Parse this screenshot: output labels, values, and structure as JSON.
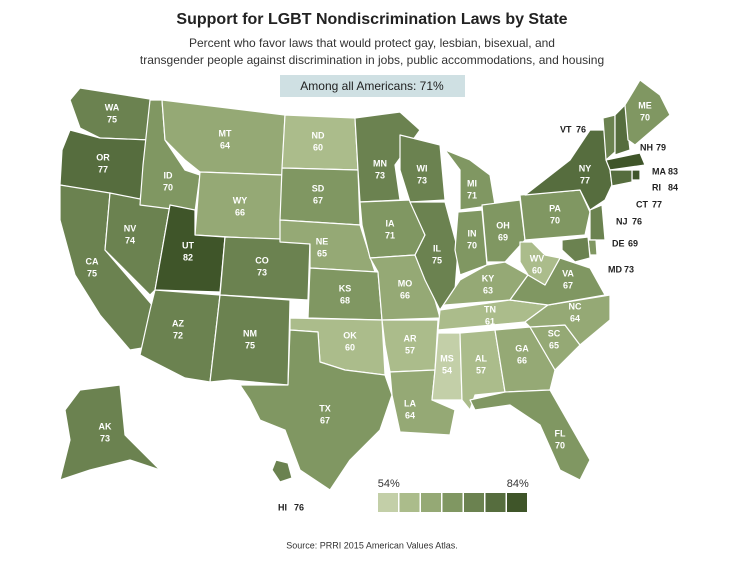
{
  "chart_data": {
    "type": "choropleth",
    "title": "Support for LGBT Nondiscrimination Laws by State",
    "subtitle": [
      "Percent who favor laws that would protect gay, lesbian, bisexual, and",
      "transgender people against discrimination in jobs, public accommodations, and housing"
    ],
    "annotation": "Among all Americans: 71%",
    "source": "Source: PRRI 2015 American Values Atlas.",
    "regions": [
      "WA",
      "OR",
      "CA",
      "NV",
      "ID",
      "MT",
      "WY",
      "UT",
      "CO",
      "AZ",
      "NM",
      "ND",
      "SD",
      "NE",
      "KS",
      "OK",
      "TX",
      "MN",
      "IA",
      "MO",
      "AR",
      "LA",
      "WI",
      "IL",
      "MI",
      "IN",
      "OH",
      "KY",
      "TN",
      "MS",
      "AL",
      "GA",
      "FL",
      "SC",
      "NC",
      "VA",
      "WV",
      "PA",
      "NY",
      "VT",
      "NH",
      "ME",
      "MA",
      "RI",
      "CT",
      "NJ",
      "DE",
      "MD",
      "AK",
      "HI"
    ],
    "values": [
      75,
      77,
      75,
      74,
      70,
      64,
      66,
      82,
      73,
      72,
      75,
      60,
      67,
      65,
      68,
      60,
      67,
      73,
      71,
      66,
      57,
      64,
      73,
      75,
      71,
      70,
      69,
      63,
      61,
      54,
      57,
      66,
      70,
      65,
      64,
      67,
      60,
      70,
      77,
      76,
      79,
      70,
      83,
      84,
      77,
      76,
      69,
      73,
      73,
      76
    ],
    "legend": {
      "colors": [
        "#c3cfa8",
        "#abbc8b",
        "#95a975",
        "#809762",
        "#6b8250",
        "#566d3e",
        "#3f5529"
      ],
      "ticks": [
        {
          "value": 54,
          "label": "54%"
        },
        {
          "value": 84,
          "label": "84%"
        }
      ]
    }
  }
}
